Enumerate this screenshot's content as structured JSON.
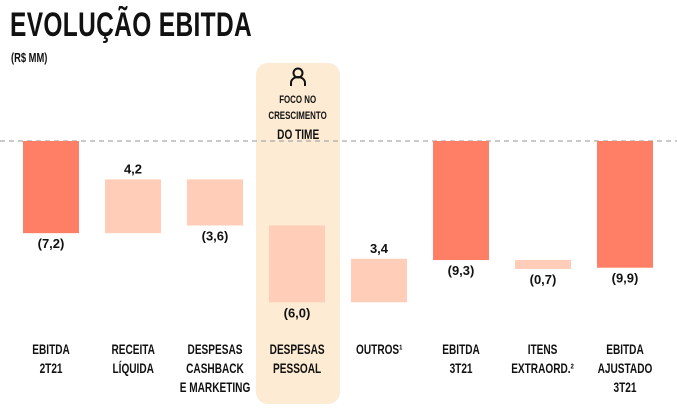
{
  "title": "EVOLUÇÃO EBITDA",
  "unit": "(R$ MM)",
  "highlight": {
    "icon": "person-icon",
    "line1": "FOCO NO",
    "line2": "CRESCIMENTO",
    "line3": "DO TIME",
    "color": "#FDEBD3"
  },
  "colors": {
    "total": "#FF7F66",
    "delta": "#FFCDB8",
    "baseline": "#AAAAAA"
  },
  "chart_data": {
    "type": "waterfall",
    "categories": [
      "EBITDA\n2T21",
      "RECEITA\nLÍQUIDA",
      "DESPESAS\nCASHBACK\nE MARKETING",
      "DESPESAS\nPESSOAL",
      "OUTROS¹",
      "EBITDA\n3T21",
      "ITENS\nEXTRAORD.²",
      "EBITDA\nAJUSTADO\n3T21"
    ],
    "values": [
      -7.2,
      4.2,
      -3.6,
      -6.0,
      3.4,
      -9.3,
      -0.7,
      -9.9
    ],
    "kinds": [
      "total",
      "delta",
      "delta",
      "delta",
      "delta",
      "total",
      "delta",
      "total"
    ],
    "labels": [
      "(7,2)",
      "4,2",
      "(3,6)",
      "(6,0)",
      "3,4",
      "(9,3)",
      "(0,7)",
      "(9,9)"
    ],
    "baseline": 0,
    "highlighted_category": "DESPESAS\nPESSOAL"
  }
}
